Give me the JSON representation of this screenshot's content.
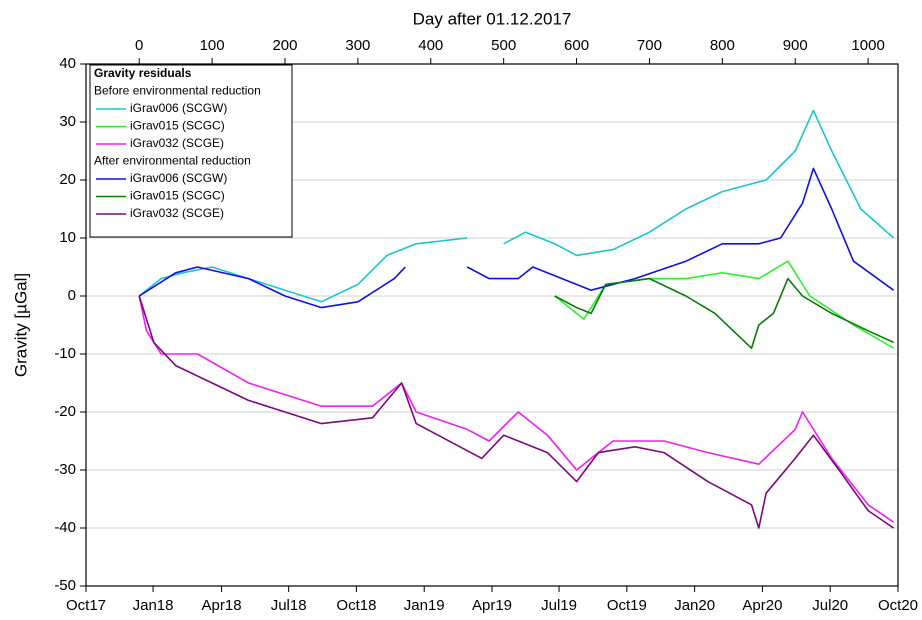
{
  "chart_data": {
    "type": "line",
    "xlabel": "Day after 01.12.2017",
    "ylabel": "Gravity [µGal]",
    "xlim": [
      -73,
      1041
    ],
    "xticks": [
      0,
      100,
      200,
      300,
      400,
      500,
      600,
      700,
      800,
      900,
      1000
    ],
    "xticks_bottom": [
      {
        "value": -73,
        "label": "Oct17"
      },
      {
        "value": 19,
        "label": "Jan18"
      },
      {
        "value": 113,
        "label": "Apr18"
      },
      {
        "value": 205,
        "label": "Jul18"
      },
      {
        "value": 298,
        "label": "Oct18"
      },
      {
        "value": 391,
        "label": "Jan19"
      },
      {
        "value": 484,
        "label": "Apr19"
      },
      {
        "value": 576,
        "label": "Jul19"
      },
      {
        "value": 669,
        "label": "Oct19"
      },
      {
        "value": 762,
        "label": "Jan20"
      },
      {
        "value": 855,
        "label": "Apr20"
      },
      {
        "value": 948,
        "label": "Jul20"
      },
      {
        "value": 1041,
        "label": "Oct20"
      }
    ],
    "ylim": [
      -50,
      40
    ],
    "yticks": [
      -50,
      -40,
      -30,
      -20,
      -10,
      0,
      10,
      20,
      30,
      40
    ],
    "grid": true,
    "legend": {
      "title": "Gravity residuals",
      "groups": [
        "Before environmental reduction",
        "After environmental reduction"
      ]
    },
    "series": [
      {
        "name": "iGrav006 (SCGW)",
        "color": "#1fc4c9",
        "x": [
          0,
          30,
          60,
          100,
          150,
          200,
          250,
          300,
          340,
          380,
          450,
          470,
          500,
          530,
          570,
          600,
          650,
          700,
          750,
          800,
          860,
          900,
          925,
          950,
          990,
          1035
        ],
        "values": [
          0,
          3,
          4,
          5,
          3,
          1,
          -1,
          2,
          7,
          9,
          10,
          null,
          9,
          11,
          9,
          7,
          8,
          11,
          15,
          18,
          20,
          25,
          32,
          25,
          15,
          10
        ]
      },
      {
        "name": "iGrav015 (SCGC)",
        "color": "#33ee33",
        "x": [
          570,
          590,
          610,
          640,
          700,
          750,
          800,
          850,
          890,
          920,
          980,
          1035
        ],
        "values": [
          0,
          -2,
          -4,
          2,
          3,
          3,
          4,
          3,
          6,
          0,
          -5,
          -9
        ]
      },
      {
        "name": "iGrav032 (SCGE)",
        "color": "#ee22ee",
        "x": [
          0,
          10,
          30,
          80,
          150,
          250,
          320,
          360,
          380,
          450,
          480,
          520,
          560,
          600,
          620,
          650,
          720,
          780,
          850,
          900,
          910,
          950,
          1000,
          1035
        ],
        "values": [
          0,
          -6,
          -10,
          -10,
          -15,
          -19,
          -19,
          -15,
          -20,
          -23,
          -25,
          -20,
          -24,
          -30,
          -28,
          -25,
          -25,
          -27,
          -29,
          -23,
          -20,
          -28,
          -36,
          -39
        ]
      },
      {
        "name": "iGrav006 (SCGW)",
        "color": "#1010e0",
        "x": [
          0,
          50,
          80,
          150,
          200,
          250,
          300,
          350,
          365,
          370,
          450,
          480,
          520,
          540,
          580,
          620,
          680,
          750,
          800,
          850,
          880,
          910,
          925,
          950,
          980,
          1035
        ],
        "values": [
          0,
          4,
          5,
          3,
          0,
          -2,
          -1,
          3,
          5,
          null,
          5,
          3,
          3,
          5,
          3,
          1,
          3,
          6,
          9,
          9,
          10,
          16,
          22,
          15,
          6,
          1
        ]
      },
      {
        "name": "iGrav015 (SCGC)",
        "color": "#0a7a0a",
        "x": [
          570,
          600,
          620,
          640,
          700,
          750,
          790,
          840,
          850,
          870,
          890,
          910,
          950,
          1000,
          1035
        ],
        "values": [
          0,
          -2,
          -3,
          2,
          3,
          0,
          -3,
          -9,
          -5,
          -3,
          3,
          0,
          -3,
          -6,
          -8
        ]
      },
      {
        "name": "iGrav032 (SCGE)",
        "color": "#7a0a7a",
        "x": [
          0,
          20,
          50,
          100,
          150,
          200,
          250,
          320,
          360,
          380,
          470,
          500,
          560,
          600,
          630,
          680,
          720,
          780,
          840,
          850,
          860,
          900,
          925,
          960,
          1000,
          1035
        ],
        "values": [
          0,
          -8,
          -12,
          -15,
          -18,
          -20,
          -22,
          -21,
          -15,
          -22,
          -28,
          -24,
          -27,
          -32,
          -27,
          -26,
          -27,
          -32,
          -36,
          -40,
          -34,
          -28,
          -24,
          -30,
          -37,
          -40
        ]
      }
    ]
  }
}
